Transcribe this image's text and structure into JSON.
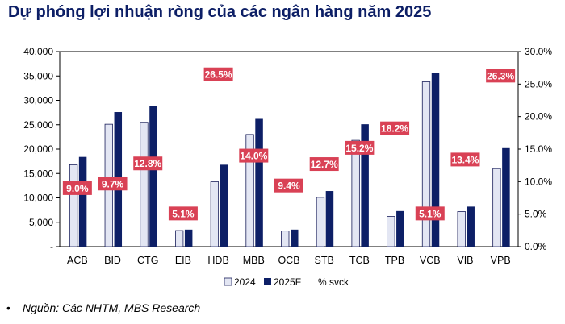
{
  "title": "Dự phóng lợi nhuận ròng của các ngân hàng năm 2025",
  "source": {
    "bullet": "•",
    "text": "Nguồn: Các NHTM, MBS Research"
  },
  "colors": {
    "title": "#0d1f66",
    "bar_2024": "#e3e6f3",
    "bar_2024_border": "#1a1f5a",
    "bar_2025F": "#0d1f66",
    "pct_box": "#d94155"
  },
  "chart_data": {
    "type": "bar",
    "categories": [
      "ACB",
      "BID",
      "CTG",
      "EIB",
      "HDB",
      "MBB",
      "OCB",
      "STB",
      "TCB",
      "TPB",
      "VCB",
      "VIB",
      "VPB"
    ],
    "series": [
      {
        "name": "2024",
        "values": [
          16800,
          25100,
          25500,
          3300,
          13300,
          23000,
          3200,
          10100,
          21800,
          6200,
          33800,
          7200,
          16000
        ]
      },
      {
        "name": "2025F",
        "values": [
          18400,
          27600,
          28800,
          3500,
          16800,
          26200,
          3500,
          11400,
          25100,
          7300,
          35600,
          8200,
          20200
        ]
      },
      {
        "name": "% svck",
        "axis": "right",
        "values": [
          "9.0%",
          "9.7%",
          "12.8%",
          "5.1%",
          "26.5%",
          "14.0%",
          "9.4%",
          "12.7%",
          "15.2%",
          "18.2%",
          "5.1%",
          "13.4%",
          "26.3%"
        ],
        "numeric": [
          9.0,
          9.7,
          12.8,
          5.1,
          26.5,
          14.0,
          9.4,
          12.7,
          15.2,
          18.2,
          5.1,
          13.4,
          26.3
        ]
      }
    ],
    "y_left_ticks": [
      "40,000",
      "35,000",
      "30,000",
      "25,000",
      "20,000",
      "15,000",
      "10,000",
      "5,000",
      "-"
    ],
    "y_right_ticks": [
      "30.0%",
      "25.0%",
      "20.0%",
      "15.0%",
      "10.0%",
      "5.0%",
      "0.0%"
    ],
    "ylim_left": [
      0,
      40000
    ],
    "ylim_right": [
      0,
      30
    ],
    "legend": [
      "2024",
      "2025F",
      "% svck"
    ],
    "legend_position": "bottom-center",
    "grid": false
  }
}
